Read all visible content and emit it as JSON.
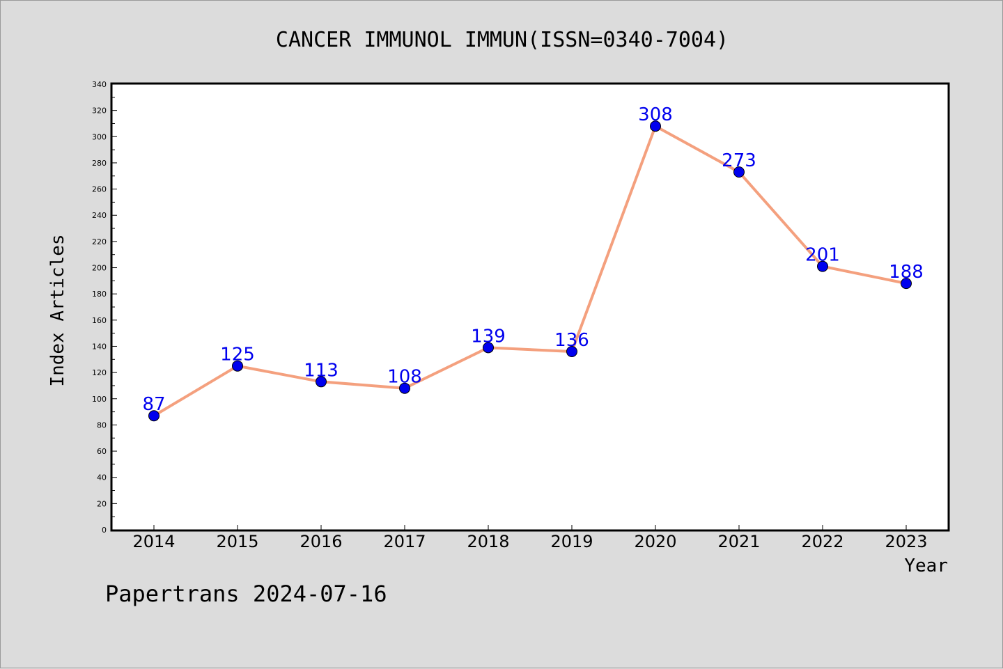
{
  "chart_data": {
    "type": "line",
    "title": "CANCER IMMUNOL IMMUN(ISSN=0340-7004)",
    "xlabel": "Year",
    "ylabel": "Index Articles",
    "categories": [
      "2014",
      "2015",
      "2016",
      "2017",
      "2018",
      "2019",
      "2020",
      "2021",
      "2022",
      "2023"
    ],
    "series": [
      {
        "values": [
          87,
          125,
          113,
          108,
          139,
          136,
          308,
          273,
          201,
          188
        ],
        "line_color": "#f4a07e",
        "marker_color": "#0000ee",
        "label_color": "#0000ee"
      }
    ],
    "ylim": [
      0,
      340
    ],
    "yticks": [
      0,
      20,
      40,
      60,
      80,
      100,
      120,
      140,
      160,
      180,
      200,
      220,
      240,
      260,
      280,
      300,
      320,
      340
    ],
    "grid": false,
    "legend": "none",
    "footer": "Papertrans 2024-07-16"
  },
  "colors": {
    "background": "#dcdcdc",
    "plot_background": "#ffffff",
    "axis": "#000000"
  }
}
